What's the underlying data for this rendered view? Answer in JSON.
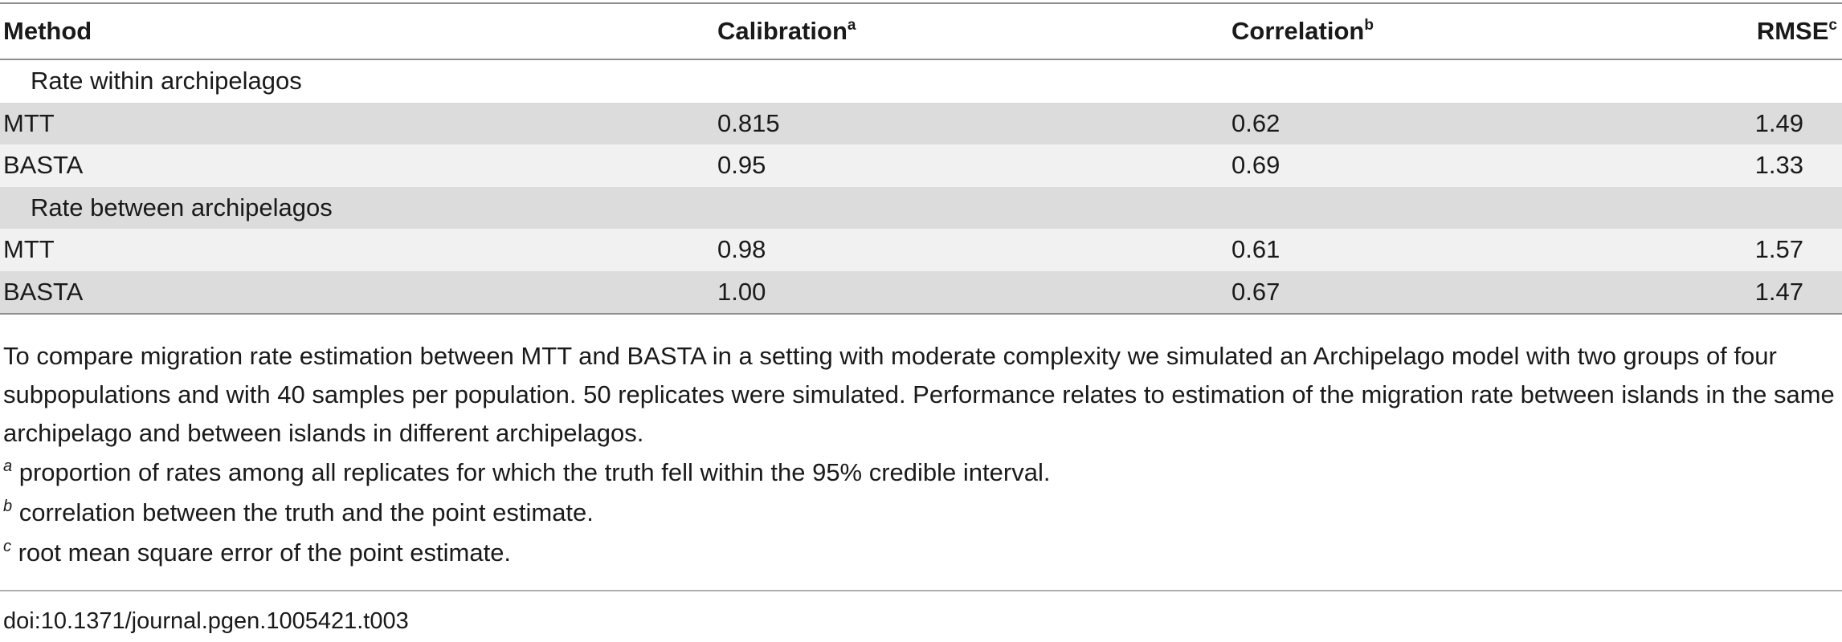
{
  "table": {
    "headers": {
      "method": "Method",
      "calibration": "Calibration",
      "calibration_sup": "a",
      "correlation": "Correlation",
      "correlation_sup": "b",
      "rmse": "RMSE",
      "rmse_sup": "c"
    },
    "group1_label": "Rate within archipelagos",
    "group1_rows": [
      {
        "method": "MTT",
        "calibration": "0.815",
        "correlation": "0.62",
        "rmse": "1.49"
      },
      {
        "method": "BASTA",
        "calibration": "0.95",
        "correlation": "0.69",
        "rmse": "1.33"
      }
    ],
    "group2_label": "Rate between archipelagos",
    "group2_rows": [
      {
        "method": "MTT",
        "calibration": "0.98",
        "correlation": "0.61",
        "rmse": "1.57"
      },
      {
        "method": "BASTA",
        "calibration": "1.00",
        "correlation": "0.67",
        "rmse": "1.47"
      }
    ]
  },
  "caption": {
    "text": "To compare migration rate estimation between MTT and BASTA in a setting with moderate complexity we simulated an Archipelago model with two groups of four subpopulations and with 40 samples per population. 50 replicates were simulated. Performance relates to estimation of the migration rate between islands in the same archipelago and between islands in different archipelagos.",
    "footnotes": [
      {
        "mark": "a",
        "text": " proportion of rates among all replicates for which the truth fell within the 95% credible interval."
      },
      {
        "mark": "b",
        "text": " correlation between the truth and the point estimate."
      },
      {
        "mark": "c",
        "text": " root mean square error of the point estimate."
      }
    ]
  },
  "doi": "doi:10.1371/journal.pgen.1005421.t003",
  "colors": {
    "row_dark": "#dcdcdc",
    "row_light": "#f1f1f1",
    "rule": "#8e8e8e"
  }
}
